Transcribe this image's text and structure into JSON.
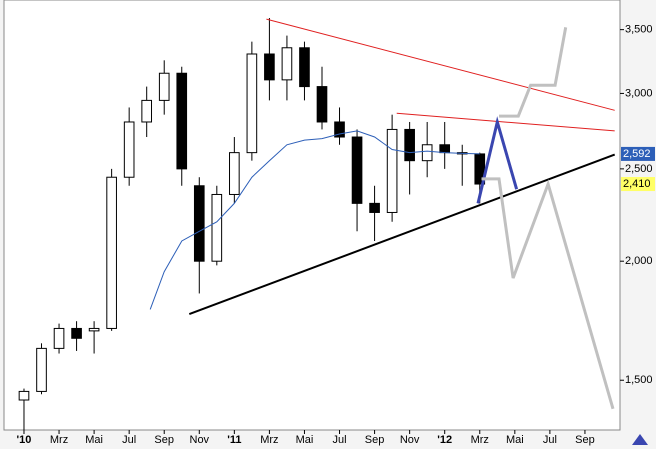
{
  "chart_data": {
    "type": "candlestick",
    "log_y": true,
    "x": [
      0,
      1,
      2,
      3,
      4,
      5,
      6,
      7,
      8,
      9,
      10,
      11,
      12,
      13,
      14,
      15,
      16,
      17,
      18,
      19,
      20,
      21,
      22,
      23,
      24,
      25,
      26
    ],
    "open": [
      1430,
      1460,
      1620,
      1700,
      1690,
      1700,
      2450,
      2800,
      2950,
      3150,
      2400,
      2000,
      2350,
      2600,
      3300,
      3100,
      3350,
      3050,
      2800,
      2700,
      2300,
      2250,
      2750,
      2550,
      2650,
      2600,
      2592
    ],
    "high": [
      1470,
      1640,
      1720,
      1730,
      1730,
      2500,
      2900,
      3050,
      3250,
      3200,
      2450,
      2400,
      2700,
      3400,
      3600,
      3450,
      3400,
      3200,
      2900,
      2750,
      2400,
      2850,
      2800,
      2800,
      2800,
      2650,
      2600
    ],
    "low": [
      1330,
      1450,
      1600,
      1610,
      1600,
      1690,
      2400,
      2700,
      2850,
      2400,
      1850,
      1980,
      2300,
      2550,
      2950,
      2950,
      2950,
      2750,
      2650,
      2150,
      2100,
      2200,
      2350,
      2450,
      2500,
      2400,
      2300
    ],
    "close": [
      1460,
      1620,
      1700,
      1660,
      1700,
      2450,
      2800,
      2950,
      3150,
      2500,
      2000,
      2350,
      2600,
      3300,
      3100,
      3350,
      3050,
      2800,
      2700,
      2300,
      2250,
      2750,
      2550,
      2650,
      2600,
      2592,
      2410
    ],
    "up_color": "#ffffff",
    "down_color": "#000000",
    "lines": [
      {
        "color": "#2d5fb8",
        "width": 1,
        "x": [
          7.2,
          8,
          9,
          10,
          11,
          12,
          13,
          14,
          15,
          16,
          17,
          18,
          19,
          20,
          21,
          22,
          23,
          24,
          25,
          26
        ],
        "values": [
          1780,
          1950,
          2100,
          2150,
          2200,
          2300,
          2450,
          2550,
          2650,
          2680,
          2690,
          2720,
          2740,
          2700,
          2620,
          2600,
          2610,
          2600,
          2595,
          2592
        ]
      },
      {
        "color": "#000000",
        "width": 2,
        "x": [
          9.43,
          33.7
        ],
        "values": [
          1760,
          2588
        ]
      },
      {
        "color": "#e02020",
        "width": 1,
        "x": [
          13.83,
          33.7
        ],
        "values": [
          3590,
          2880
        ]
      },
      {
        "color": "#e02020",
        "width": 1,
        "x": [
          21.26,
          33.7
        ],
        "values": [
          2860,
          2740
        ]
      },
      {
        "color": "#3a46b0",
        "width": 3,
        "x": [
          25.9,
          27.0,
          28.1
        ],
        "values": [
          2300,
          2800,
          2380
        ]
      },
      {
        "color": "#c0c0c0",
        "width": 3,
        "x": [
          27.1,
          28.2,
          28.9,
          30.3,
          30.9
        ],
        "values": [
          2840,
          2840,
          3060,
          3060,
          3520
        ]
      },
      {
        "color": "#c0c0c0",
        "width": 3,
        "x": [
          26.1,
          27.1,
          27.9,
          29.9,
          33.6
        ],
        "values": [
          2440,
          2440,
          1920,
          2410,
          1400
        ]
      }
    ],
    "markers": [
      {
        "value": 2592,
        "label": "2,592",
        "color": "#2d5fb8",
        "text_color": "#ffffff"
      },
      {
        "value": 2410,
        "label": "2,410",
        "color": "#ffff66",
        "text_color": "#000000"
      }
    ],
    "xlim": [
      -1.14,
      34
    ],
    "xticks": [
      {
        "value": 0,
        "label": "'10"
      },
      {
        "value": 2,
        "label": "Mrz"
      },
      {
        "value": 4,
        "label": "Mai"
      },
      {
        "value": 6,
        "label": "Jul"
      },
      {
        "value": 8,
        "label": "Sep"
      },
      {
        "value": 10,
        "label": "Nov"
      },
      {
        "value": 12,
        "label": "'11"
      },
      {
        "value": 14,
        "label": "Mrz"
      },
      {
        "value": 16,
        "label": "Mai"
      },
      {
        "value": 18,
        "label": "Jul"
      },
      {
        "value": 20,
        "label": "Sep"
      },
      {
        "value": 22,
        "label": "Nov"
      },
      {
        "value": 24,
        "label": "'12"
      },
      {
        "value": 26,
        "label": "Mrz"
      },
      {
        "value": 28,
        "label": "Mai"
      },
      {
        "value": 30,
        "label": "Jul"
      },
      {
        "value": 32,
        "label": "Sep"
      }
    ],
    "ylim": [
      1330,
      3760
    ],
    "yticks": [
      {
        "value": 1500,
        "label": "1,500"
      },
      {
        "value": 2000,
        "label": "2,000"
      },
      {
        "value": 2500,
        "label": "2,500"
      },
      {
        "value": 3000,
        "label": "3,000"
      },
      {
        "value": 3500,
        "label": "3,500"
      }
    ]
  }
}
